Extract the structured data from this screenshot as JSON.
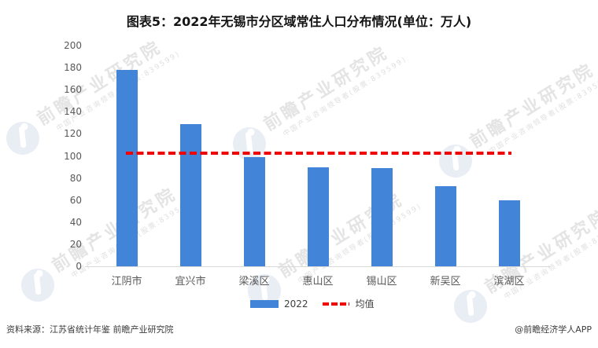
{
  "title": "图表5：2022年无锡市分区域常住人口分布情况(单位：万人)",
  "chart_data": {
    "type": "bar",
    "title": "图表5：2022年无锡市分区域常住人口分布情况(单位：万人)",
    "categories": [
      "江阴市",
      "宜兴市",
      "梁溪区",
      "惠山区",
      "锡山区",
      "新吴区",
      "滨湖区"
    ],
    "series": [
      {
        "name": "2022",
        "values": [
          178.2,
          128.5,
          98.7,
          89.9,
          88.8,
          72.7,
          59.8
        ]
      }
    ],
    "mean_line": {
      "label": "均值",
      "value": 102.4
    },
    "unit": "万人",
    "ylim": [
      0,
      200
    ],
    "ytick_step": 20,
    "grid": false,
    "legend_position": "bottom",
    "bar_color": "#4184D8",
    "mean_color": "#F00000"
  },
  "legend": {
    "series_label": "2022",
    "mean_label": "均值"
  },
  "footer": {
    "source": "资料来源：江苏省统计年鉴 前瞻产业研究院",
    "credit": "@前瞻经济学人APP"
  },
  "watermark": {
    "main": "前瞻产业研究院",
    "sub": "中国产业咨询领导者(股票:839599)"
  }
}
